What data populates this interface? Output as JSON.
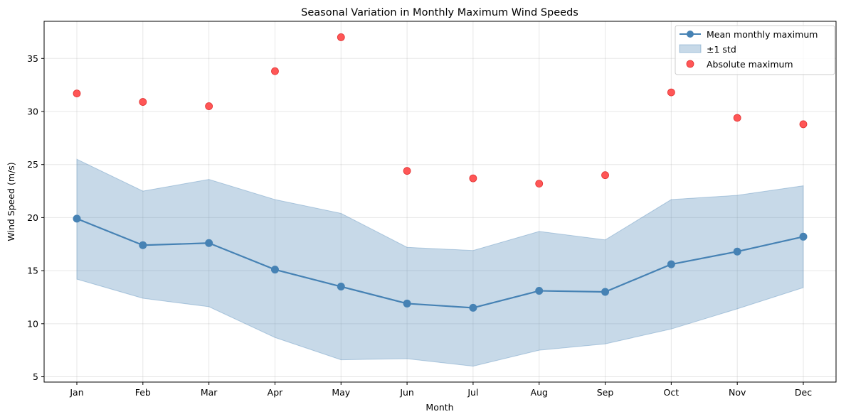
{
  "chart_data": {
    "type": "line",
    "title": "Seasonal Variation in Monthly Maximum Wind Speeds",
    "xlabel": "Month",
    "ylabel": "Wind Speed (m/s)",
    "categories": [
      "Jan",
      "Feb",
      "Mar",
      "Apr",
      "May",
      "Jun",
      "Jul",
      "Aug",
      "Sep",
      "Oct",
      "Nov",
      "Dec"
    ],
    "ylim": [
      4.5,
      38.5
    ],
    "yticks": [
      5,
      10,
      15,
      20,
      25,
      30,
      35
    ],
    "grid": true,
    "legend_position": "top-right",
    "series": [
      {
        "name": "Mean monthly maximum",
        "kind": "line",
        "color": "#4682b4",
        "values": [
          19.9,
          17.4,
          17.6,
          15.1,
          13.5,
          11.9,
          11.5,
          13.1,
          13.0,
          15.6,
          16.8,
          18.2
        ]
      },
      {
        "name": "±1 std",
        "kind": "band",
        "color": "#4682b4",
        "upper": [
          25.5,
          22.5,
          23.6,
          21.7,
          20.4,
          17.2,
          16.9,
          18.7,
          17.9,
          21.7,
          22.1,
          23.0
        ],
        "lower": [
          14.2,
          12.4,
          11.6,
          8.7,
          6.6,
          6.7,
          6.0,
          7.5,
          8.1,
          9.5,
          11.4,
          13.4
        ]
      },
      {
        "name": "Absolute maximum",
        "kind": "scatter",
        "color": "#ff4d4d",
        "values": [
          31.7,
          30.9,
          30.5,
          33.8,
          37.0,
          24.4,
          23.7,
          23.2,
          24.0,
          31.8,
          29.4,
          28.8
        ]
      }
    ]
  }
}
